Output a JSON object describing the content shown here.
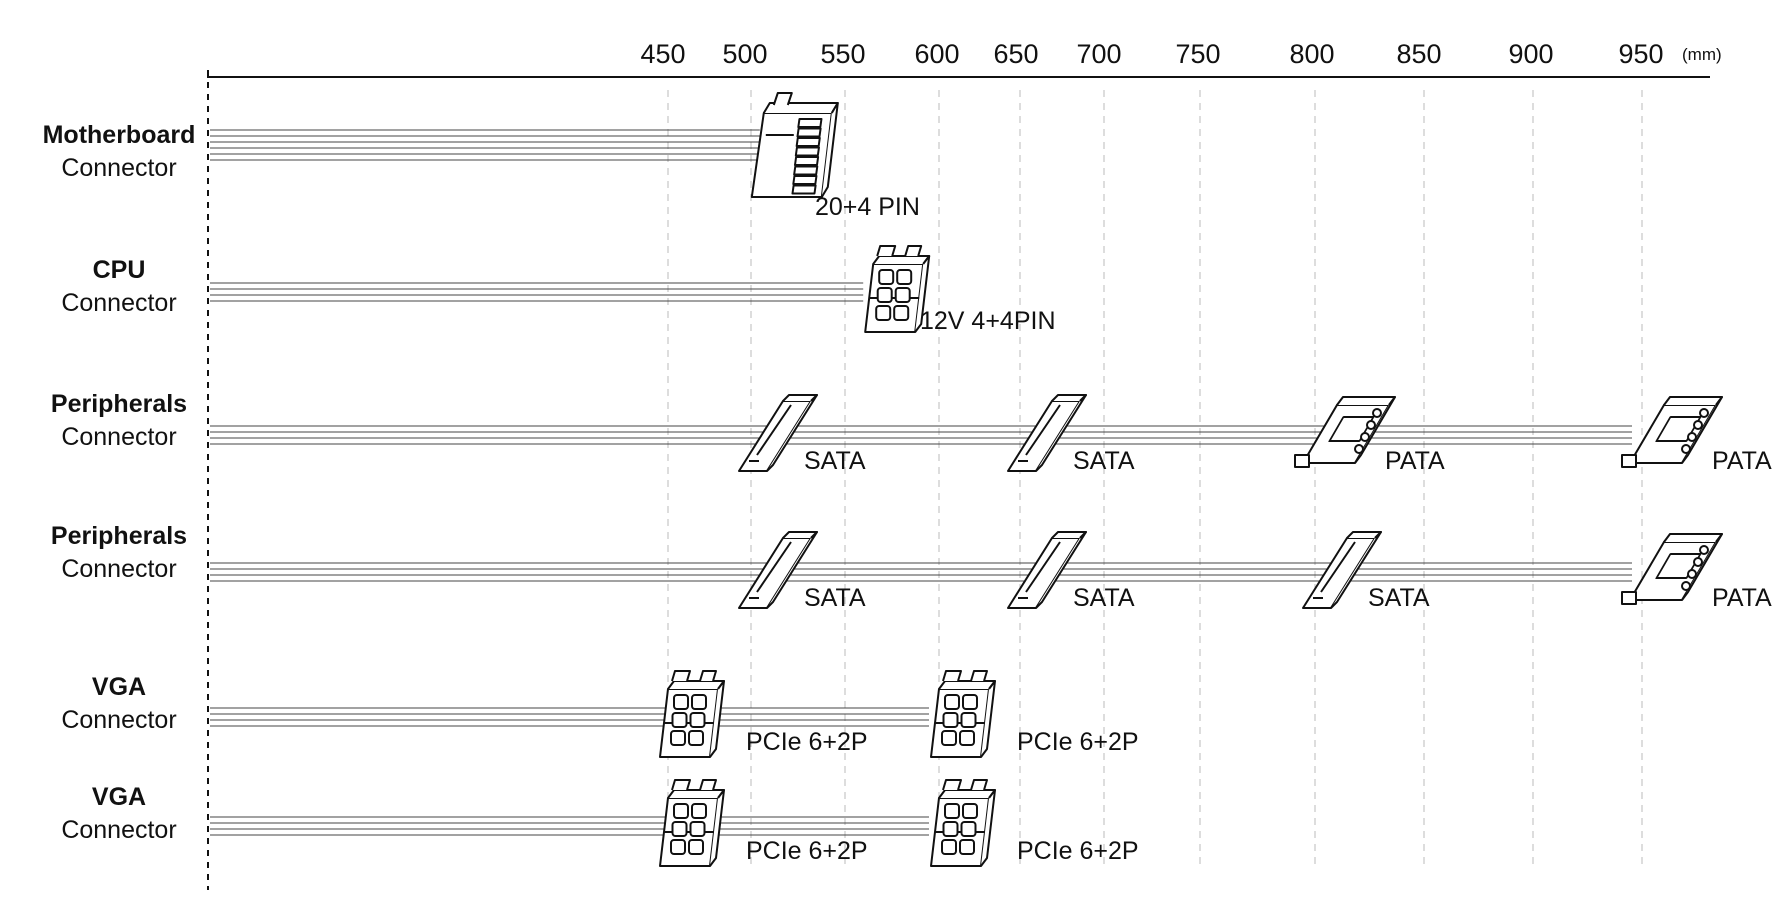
{
  "axis": {
    "ticks": [
      "450",
      "500",
      "550",
      "600",
      "650",
      "700",
      "750",
      "800",
      "850",
      "900",
      "950"
    ],
    "unit": "(mm)"
  },
  "rows": [
    {
      "title": "Motherboard",
      "subtitle": "Connector",
      "wires": 6,
      "connectors": [
        {
          "type": "atx",
          "pos_mm": 510,
          "label": "20+4 PIN"
        }
      ]
    },
    {
      "title": "CPU",
      "subtitle": "Connector",
      "wires": 4,
      "connectors": [
        {
          "type": "eps",
          "pos_mm": 565,
          "label": "12V 4+4PIN"
        }
      ]
    },
    {
      "title": "Peripherals",
      "subtitle": "Connector",
      "wires": 4,
      "connectors": [
        {
          "type": "sata",
          "pos_mm": 500,
          "label": "SATA"
        },
        {
          "type": "sata",
          "pos_mm": 650,
          "label": "SATA"
        },
        {
          "type": "pata",
          "pos_mm": 800,
          "label": "PATA"
        },
        {
          "type": "pata",
          "pos_mm": 950,
          "label": "PATA"
        }
      ]
    },
    {
      "title": "Peripherals",
      "subtitle": "Connector",
      "wires": 4,
      "connectors": [
        {
          "type": "sata",
          "pos_mm": 500,
          "label": "SATA"
        },
        {
          "type": "sata",
          "pos_mm": 650,
          "label": "SATA"
        },
        {
          "type": "sata",
          "pos_mm": 800,
          "label": "SATA"
        },
        {
          "type": "pata",
          "pos_mm": 950,
          "label": "PATA"
        }
      ]
    },
    {
      "title": "VGA",
      "subtitle": "Connector",
      "wires": 4,
      "connectors": [
        {
          "type": "pcie",
          "pos_mm": 450,
          "label": "PCIe 6+2P"
        },
        {
          "type": "pcie",
          "pos_mm": 600,
          "label": "PCIe 6+2P"
        }
      ]
    },
    {
      "title": "VGA",
      "subtitle": "Connector",
      "wires": 4,
      "connectors": [
        {
          "type": "pcie",
          "pos_mm": 450,
          "label": "PCIe 6+2P"
        },
        {
          "type": "pcie",
          "pos_mm": 600,
          "label": "PCIe 6+2P"
        }
      ]
    }
  ]
}
